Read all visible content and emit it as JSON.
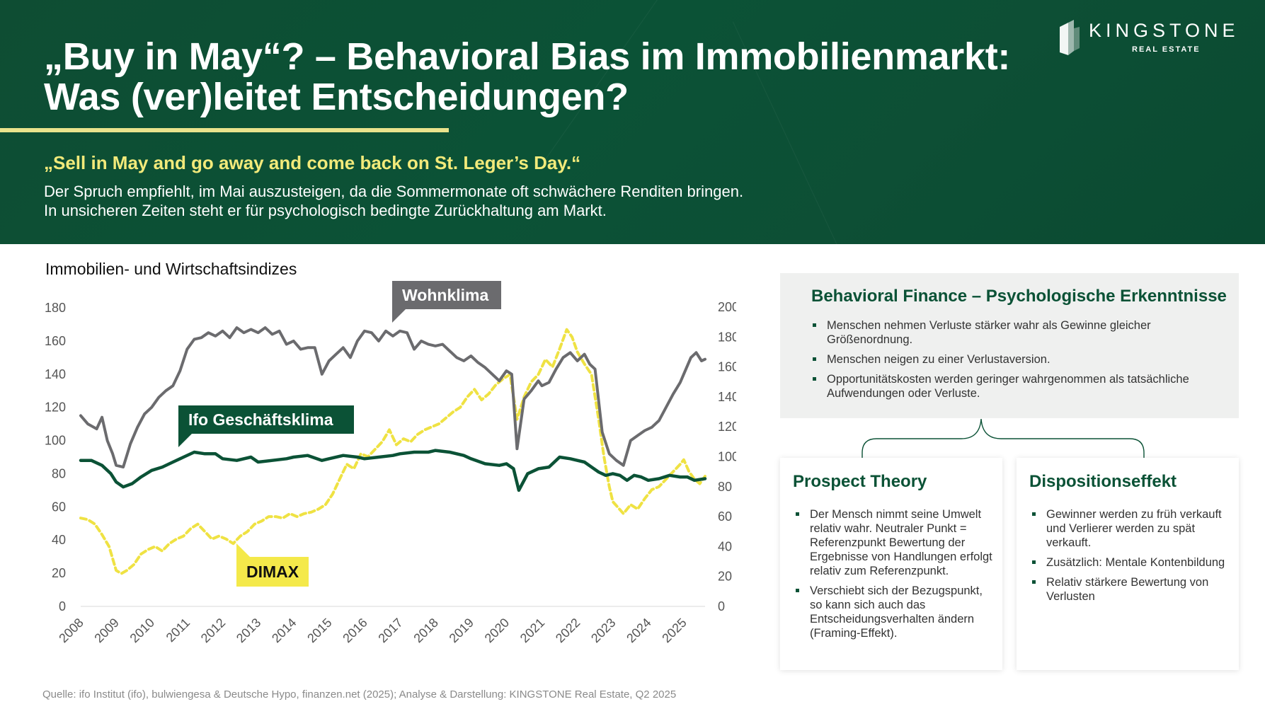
{
  "header": {
    "title_line1": "„Buy in May“? – Behavioral Bias im Immobilienmarkt:",
    "title_line2": "Was (ver)leitet Entscheidungen?",
    "subtitle": "„Sell in May and go away and come back on St. Leger’s Day.“",
    "text_line1": "Der Spruch empfiehlt, im Mai auszusteigen, da die Sommermonate oft schwächere Renditen bringen.",
    "text_line2": "In unsicheren Zeiten steht er für psychologisch bedingte Zurückhaltung am Markt.",
    "logo_name": "KINGSTONE",
    "logo_sub": "REAL ESTATE"
  },
  "colors": {
    "brand_green": "#0b5236",
    "accent_yellow": "#efe243",
    "wohnklima_gray": "#6b6b6e",
    "label_yellow_bg": "#f4e94a"
  },
  "chart_title": "Immobilien- und Wirtschaftsindizes",
  "chart_data": {
    "type": "line",
    "title": "Immobilien- und Wirtschaftsindizes",
    "x_label": "",
    "x_ticks": [
      "2008",
      "2009",
      "2010",
      "2011",
      "2012",
      "2013",
      "2014",
      "2015",
      "2016",
      "2017",
      "2018",
      "2019",
      "2020",
      "2021",
      "2022",
      "2023",
      "2024",
      "2025"
    ],
    "y_left": {
      "ylim": [
        0,
        180
      ],
      "ticks": [
        "0",
        "20",
        "40",
        "60",
        "80",
        "100",
        "120",
        "140",
        "160",
        "180"
      ]
    },
    "y_right": {
      "ylim": [
        0,
        200
      ],
      "ticks": [
        "0",
        "20",
        "40",
        "60",
        "80",
        "100",
        "120",
        "140",
        "160",
        "180",
        "200"
      ]
    },
    "grid": false,
    "series": [
      {
        "name": "Wohnklima",
        "axis": "left",
        "color": "#6b6b6e",
        "points": [
          [
            2008.0,
            115
          ],
          [
            2008.2,
            110
          ],
          [
            2008.45,
            107
          ],
          [
            2008.6,
            114
          ],
          [
            2008.75,
            100
          ],
          [
            2008.9,
            92
          ],
          [
            2009.0,
            85
          ],
          [
            2009.2,
            84
          ],
          [
            2009.4,
            98
          ],
          [
            2009.6,
            108
          ],
          [
            2009.8,
            116
          ],
          [
            2010.0,
            120
          ],
          [
            2010.2,
            126
          ],
          [
            2010.4,
            130
          ],
          [
            2010.6,
            133
          ],
          [
            2010.8,
            142
          ],
          [
            2011.0,
            155
          ],
          [
            2011.2,
            161
          ],
          [
            2011.4,
            162
          ],
          [
            2011.6,
            165
          ],
          [
            2011.8,
            163
          ],
          [
            2012.0,
            166
          ],
          [
            2012.2,
            162
          ],
          [
            2012.4,
            168
          ],
          [
            2012.6,
            165
          ],
          [
            2012.8,
            167
          ],
          [
            2013.0,
            165
          ],
          [
            2013.2,
            168
          ],
          [
            2013.4,
            164
          ],
          [
            2013.6,
            166
          ],
          [
            2013.8,
            158
          ],
          [
            2014.0,
            160
          ],
          [
            2014.2,
            155
          ],
          [
            2014.4,
            156
          ],
          [
            2014.6,
            156
          ],
          [
            2014.8,
            140
          ],
          [
            2015.0,
            148
          ],
          [
            2015.2,
            152
          ],
          [
            2015.4,
            156
          ],
          [
            2015.6,
            150
          ],
          [
            2015.8,
            160
          ],
          [
            2016.0,
            166
          ],
          [
            2016.2,
            165
          ],
          [
            2016.4,
            160
          ],
          [
            2016.6,
            166
          ],
          [
            2016.8,
            163
          ],
          [
            2017.0,
            166
          ],
          [
            2017.2,
            165
          ],
          [
            2017.4,
            155
          ],
          [
            2017.6,
            160
          ],
          [
            2017.8,
            158
          ],
          [
            2018.0,
            157
          ],
          [
            2018.2,
            158
          ],
          [
            2018.4,
            154
          ],
          [
            2018.6,
            150
          ],
          [
            2018.8,
            148
          ],
          [
            2019.0,
            151
          ],
          [
            2019.2,
            147
          ],
          [
            2019.4,
            144
          ],
          [
            2019.6,
            140
          ],
          [
            2019.8,
            136
          ],
          [
            2020.0,
            142
          ],
          [
            2020.15,
            140
          ],
          [
            2020.3,
            95
          ],
          [
            2020.5,
            125
          ],
          [
            2020.7,
            130
          ],
          [
            2020.9,
            136
          ],
          [
            2021.0,
            133
          ],
          [
            2021.2,
            135
          ],
          [
            2021.4,
            143
          ],
          [
            2021.6,
            150
          ],
          [
            2021.8,
            153
          ],
          [
            2022.0,
            148
          ],
          [
            2022.2,
            152
          ],
          [
            2022.35,
            146
          ],
          [
            2022.5,
            143
          ],
          [
            2022.7,
            105
          ],
          [
            2022.9,
            92
          ],
          [
            2023.1,
            88
          ],
          [
            2023.3,
            85
          ],
          [
            2023.5,
            100
          ],
          [
            2023.7,
            103
          ],
          [
            2023.9,
            106
          ],
          [
            2024.1,
            108
          ],
          [
            2024.3,
            112
          ],
          [
            2024.5,
            120
          ],
          [
            2024.7,
            128
          ],
          [
            2024.9,
            135
          ],
          [
            2025.0,
            140
          ],
          [
            2025.2,
            150
          ],
          [
            2025.35,
            153
          ],
          [
            2025.5,
            148
          ],
          [
            2025.6,
            149
          ]
        ]
      },
      {
        "name": "Ifo Geschäftsklima",
        "axis": "left",
        "color": "#0b5236",
        "points": [
          [
            2008.0,
            88
          ],
          [
            2008.3,
            88
          ],
          [
            2008.6,
            85
          ],
          [
            2008.85,
            80
          ],
          [
            2009.0,
            75
          ],
          [
            2009.2,
            72
          ],
          [
            2009.45,
            74
          ],
          [
            2009.7,
            78
          ],
          [
            2010.0,
            82
          ],
          [
            2010.3,
            84
          ],
          [
            2010.6,
            87
          ],
          [
            2010.9,
            90
          ],
          [
            2011.2,
            93
          ],
          [
            2011.5,
            92
          ],
          [
            2011.8,
            92
          ],
          [
            2012.0,
            89
          ],
          [
            2012.4,
            88
          ],
          [
            2012.8,
            90
          ],
          [
            2013.0,
            87
          ],
          [
            2013.4,
            88
          ],
          [
            2013.8,
            89
          ],
          [
            2014.0,
            90
          ],
          [
            2014.4,
            91
          ],
          [
            2014.8,
            88
          ],
          [
            2015.0,
            89
          ],
          [
            2015.4,
            91
          ],
          [
            2015.8,
            90
          ],
          [
            2016.0,
            89
          ],
          [
            2016.4,
            90
          ],
          [
            2016.8,
            91
          ],
          [
            2017.0,
            92
          ],
          [
            2017.4,
            93
          ],
          [
            2017.8,
            93
          ],
          [
            2018.0,
            94
          ],
          [
            2018.4,
            93
          ],
          [
            2018.8,
            91
          ],
          [
            2019.0,
            89
          ],
          [
            2019.4,
            86
          ],
          [
            2019.8,
            85
          ],
          [
            2020.0,
            86
          ],
          [
            2020.2,
            83
          ],
          [
            2020.35,
            70
          ],
          [
            2020.6,
            80
          ],
          [
            2020.9,
            83
          ],
          [
            2021.2,
            84
          ],
          [
            2021.5,
            90
          ],
          [
            2021.8,
            89
          ],
          [
            2022.0,
            88
          ],
          [
            2022.2,
            87
          ],
          [
            2022.4,
            84
          ],
          [
            2022.6,
            81
          ],
          [
            2022.8,
            79
          ],
          [
            2023.0,
            80
          ],
          [
            2023.2,
            79
          ],
          [
            2023.4,
            76
          ],
          [
            2023.6,
            79
          ],
          [
            2023.8,
            78
          ],
          [
            2024.0,
            76
          ],
          [
            2024.3,
            77
          ],
          [
            2024.6,
            79
          ],
          [
            2024.9,
            78
          ],
          [
            2025.1,
            78
          ],
          [
            2025.3,
            76
          ],
          [
            2025.6,
            77
          ]
        ]
      },
      {
        "name": "DIMAX",
        "axis": "right",
        "color": "#efe243",
        "points": [
          [
            2008.0,
            59
          ],
          [
            2008.2,
            58
          ],
          [
            2008.4,
            55
          ],
          [
            2008.6,
            48
          ],
          [
            2008.8,
            40
          ],
          [
            2008.9,
            32
          ],
          [
            2009.0,
            24
          ],
          [
            2009.15,
            22
          ],
          [
            2009.3,
            24
          ],
          [
            2009.5,
            28
          ],
          [
            2009.7,
            35
          ],
          [
            2009.9,
            38
          ],
          [
            2010.1,
            40
          ],
          [
            2010.3,
            37
          ],
          [
            2010.5,
            42
          ],
          [
            2010.7,
            45
          ],
          [
            2010.9,
            47
          ],
          [
            2011.1,
            52
          ],
          [
            2011.3,
            55
          ],
          [
            2011.5,
            50
          ],
          [
            2011.7,
            45
          ],
          [
            2011.9,
            47
          ],
          [
            2012.1,
            45
          ],
          [
            2012.3,
            42
          ],
          [
            2012.5,
            47
          ],
          [
            2012.7,
            50
          ],
          [
            2012.9,
            55
          ],
          [
            2013.1,
            57
          ],
          [
            2013.3,
            60
          ],
          [
            2013.5,
            60
          ],
          [
            2013.7,
            59
          ],
          [
            2013.9,
            62
          ],
          [
            2014.1,
            60
          ],
          [
            2014.3,
            62
          ],
          [
            2014.5,
            63
          ],
          [
            2014.7,
            65
          ],
          [
            2014.9,
            68
          ],
          [
            2015.1,
            75
          ],
          [
            2015.3,
            85
          ],
          [
            2015.5,
            95
          ],
          [
            2015.7,
            92
          ],
          [
            2015.9,
            102
          ],
          [
            2016.1,
            100
          ],
          [
            2016.3,
            105
          ],
          [
            2016.5,
            110
          ],
          [
            2016.7,
            118
          ],
          [
            2016.9,
            108
          ],
          [
            2017.1,
            112
          ],
          [
            2017.3,
            110
          ],
          [
            2017.5,
            115
          ],
          [
            2017.7,
            118
          ],
          [
            2017.9,
            120
          ],
          [
            2018.1,
            122
          ],
          [
            2018.3,
            126
          ],
          [
            2018.5,
            130
          ],
          [
            2018.7,
            133
          ],
          [
            2018.9,
            140
          ],
          [
            2019.1,
            145
          ],
          [
            2019.3,
            138
          ],
          [
            2019.5,
            142
          ],
          [
            2019.7,
            148
          ],
          [
            2019.9,
            152
          ],
          [
            2020.1,
            155
          ],
          [
            2020.3,
            125
          ],
          [
            2020.5,
            140
          ],
          [
            2020.7,
            150
          ],
          [
            2020.9,
            155
          ],
          [
            2021.1,
            165
          ],
          [
            2021.3,
            160
          ],
          [
            2021.5,
            172
          ],
          [
            2021.7,
            185
          ],
          [
            2021.85,
            180
          ],
          [
            2022.0,
            170
          ],
          [
            2022.2,
            162
          ],
          [
            2022.4,
            155
          ],
          [
            2022.6,
            125
          ],
          [
            2022.75,
            100
          ],
          [
            2022.9,
            80
          ],
          [
            2023.0,
            70
          ],
          [
            2023.15,
            66
          ],
          [
            2023.3,
            62
          ],
          [
            2023.5,
            68
          ],
          [
            2023.7,
            65
          ],
          [
            2023.9,
            72
          ],
          [
            2024.1,
            78
          ],
          [
            2024.3,
            80
          ],
          [
            2024.5,
            85
          ],
          [
            2024.7,
            90
          ],
          [
            2024.9,
            95
          ],
          [
            2025.0,
            98
          ],
          [
            2025.15,
            90
          ],
          [
            2025.3,
            85
          ],
          [
            2025.45,
            82
          ],
          [
            2025.6,
            87
          ]
        ]
      }
    ],
    "annotations": [
      "Wohnklima",
      "Ifo Geschäftsklima",
      "DIMAX"
    ]
  },
  "behavioral_finance": {
    "title": "Behavioral Finance – Psychologische Erkenntnisse",
    "items": [
      "Menschen nehmen Verluste stärker wahr als Gewinne gleicher Größenordnung.",
      "Menschen neigen zu einer Verlustaversion.",
      "Opportunitätskosten werden geringer wahrgenommen als tatsächliche Aufwendungen oder Verluste."
    ]
  },
  "prospect_theory": {
    "title": "Prospect Theory",
    "items": [
      "Der Mensch nimmt seine Umwelt relativ wahr. Neutraler Punkt = Referenzpunkt Bewertung der Ergebnisse von Handlungen erfolgt relativ zum Referenzpunkt.",
      "Verschiebt sich der Bezugspunkt, so kann sich auch das Entscheidungsverhalten ändern (Framing-Effekt)."
    ]
  },
  "dispositionseffekt": {
    "title": "Dispositionseffekt",
    "items": [
      "Gewinner werden zu früh verkauft und Verlierer werden zu spät verkauft.",
      "Zusätzlich: Mentale Kontenbildung",
      "Relativ stärkere Bewertung von Verlusten"
    ]
  },
  "source": "Quelle: ifo Institut (ifo), bulwiengesa & Deutsche Hypo, finanzen.net (2025); Analyse & Darstellung: KINGSTONE Real Estate, Q2 2025"
}
